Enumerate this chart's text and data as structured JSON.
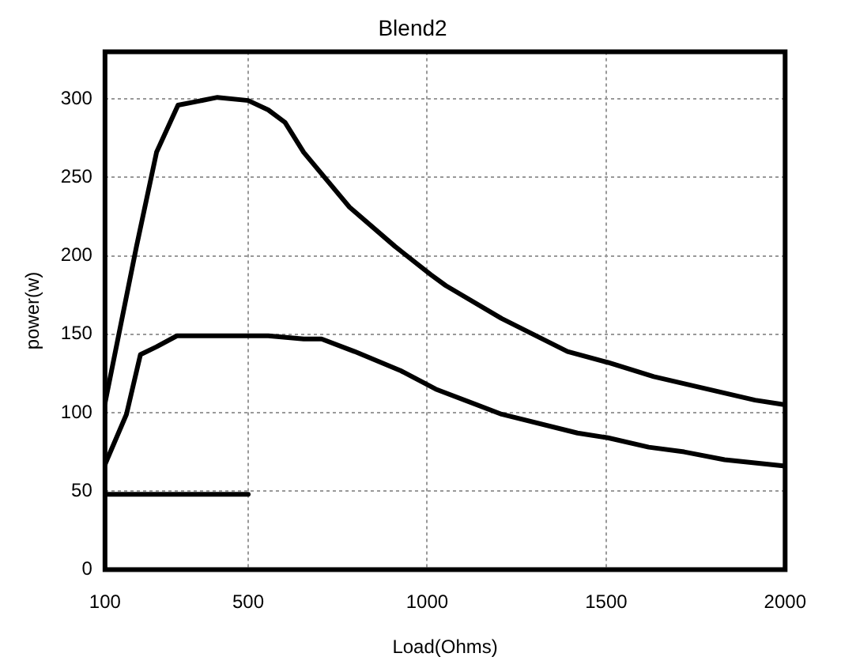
{
  "chart_data": {
    "type": "line",
    "title": "Blend2",
    "xlabel": "Load(Ohms)",
    "ylabel": "power(w)",
    "xlim": [
      100,
      2000
    ],
    "xticks": [
      100,
      500,
      1000,
      1500,
      2000
    ],
    "ylim": [
      0,
      330
    ],
    "yticks": [
      0,
      50,
      100,
      150,
      200,
      250,
      300
    ],
    "grid": true,
    "legend": false,
    "marker": "none",
    "line_style": "solid",
    "series": [
      {
        "color": "#000000",
        "x": [
          100,
          188,
          244,
          304,
          414,
          500,
          556,
          603,
          655,
          783,
          910,
          1010,
          1052,
          1208,
          1392,
          1505,
          1633,
          1916,
          2000
        ],
        "values": [
          106,
          206,
          266,
          296,
          301,
          299,
          293,
          285,
          266,
          231,
          206,
          188,
          181,
          160,
          139,
          132,
          123,
          108,
          105
        ]
      },
      {
        "color": "#000000",
        "x": [
          100,
          160,
          199,
          244,
          301,
          556,
          655,
          705,
          797,
          924,
          1024,
          1208,
          1420,
          1505,
          1619,
          1718,
          1831,
          2000
        ],
        "values": [
          67,
          99,
          137,
          142,
          149,
          149,
          147,
          147,
          139,
          127,
          115,
          99,
          87,
          84,
          78,
          75,
          70,
          66
        ]
      },
      {
        "color": "#000000",
        "x": [
          100,
          500
        ],
        "values": [
          48,
          48
        ]
      }
    ]
  }
}
